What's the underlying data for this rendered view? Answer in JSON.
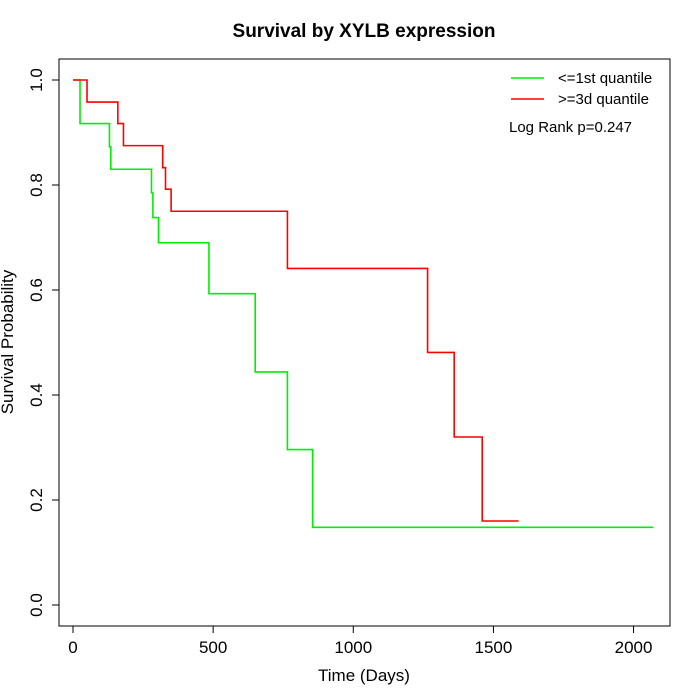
{
  "chart_data": {
    "type": "line",
    "title": "Survival by XYLB expression",
    "xlabel": "Time (Days)",
    "ylabel": "Survival Probability",
    "xlim": [
      -50,
      2130
    ],
    "ylim": [
      -0.04,
      1.04
    ],
    "xticks": [
      0,
      500,
      1000,
      1500,
      2000
    ],
    "yticks": [
      0.0,
      0.2,
      0.4,
      0.6,
      0.8,
      1.0
    ],
    "xtick_labels": [
      "0",
      "500",
      "1000",
      "1500",
      "2000"
    ],
    "ytick_labels": [
      "0.0",
      "0.2",
      "0.4",
      "0.6",
      "0.8",
      "1.0"
    ],
    "grid": false,
    "legend_position": "top-right",
    "annotation": "Log Rank p=0.247",
    "series": [
      {
        "name": "<=1st quantile",
        "color": "#00ee00",
        "step_points": [
          [
            0,
            1.0
          ],
          [
            25,
            0.917
          ],
          [
            130,
            0.873
          ],
          [
            135,
            0.83
          ],
          [
            280,
            0.785
          ],
          [
            285,
            0.738
          ],
          [
            305,
            0.69
          ],
          [
            485,
            0.593
          ],
          [
            650,
            0.444
          ],
          [
            765,
            0.296
          ],
          [
            855,
            0.148
          ],
          [
            2070,
            0.148
          ]
        ]
      },
      {
        "name": ">=3d quantile",
        "color": "#ff0000",
        "step_points": [
          [
            0,
            1.0
          ],
          [
            50,
            0.958
          ],
          [
            160,
            0.917
          ],
          [
            180,
            0.875
          ],
          [
            320,
            0.833
          ],
          [
            330,
            0.792
          ],
          [
            350,
            0.75
          ],
          [
            765,
            0.641
          ],
          [
            1265,
            0.481
          ],
          [
            1360,
            0.32
          ],
          [
            1460,
            0.16
          ],
          [
            1590,
            0.16
          ]
        ]
      }
    ]
  }
}
